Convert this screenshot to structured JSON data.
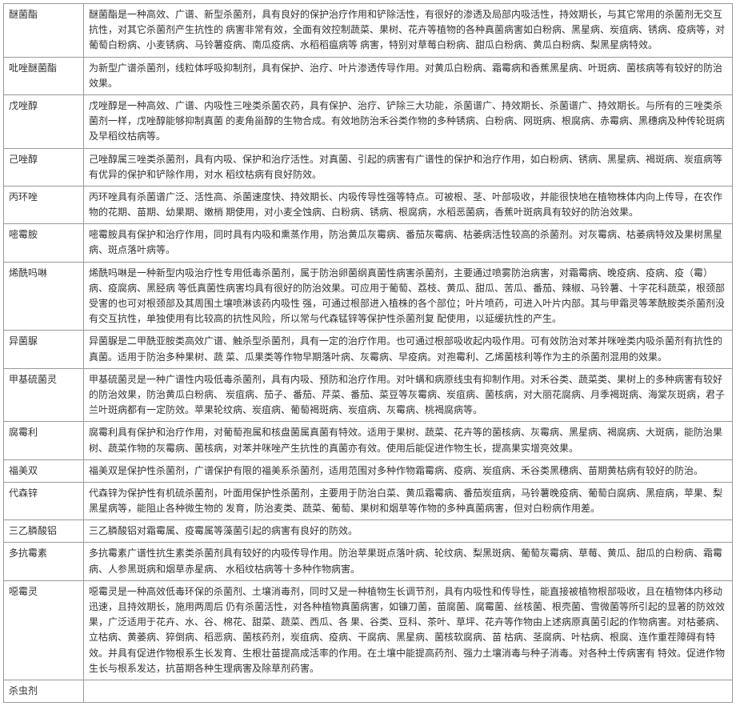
{
  "table": {
    "rows": [
      {
        "name": "醚菌酯",
        "desc": "醚菌酯是一种高效、广谱、新型杀菌剂，具有良好的保护治疗作用和铲除活性，有很好的渗透及局部内吸活性，持效期长，与其它常用的杀菌剂无交互抗性，对其它杀菌剂产生抗性的 病害非常有效，全面有效控制蔬菜、果树、花卉等植物的各种真菌病害如白粉病、黑星病、炭疽病、锈病、疫病等，对葡萄白粉病、小麦锈病、马铃薯疫病、南瓜疫病、水稻稻瘟病等 病害，特别对草莓白粉病、甜瓜白粉病、黄瓜白粉病、梨黑星病特效。"
      },
      {
        "name": "吡唑醚菌酯",
        "desc": "为新型广谱杀菌剂，线粒体呼吸抑制剂，具有保护、治疗、叶片渗透传导作用。对黄瓜白粉病、霜霉病和香蕉黑星病、叶斑病、菌核病等有较好的防治效果。"
      },
      {
        "name": "戊唑醇",
        "desc": "戊唑醇是一种高效、广谱、内吸性三唑类杀菌农药，具有保护、治疗、铲除三大功能，杀菌谱广、持效期长、杀菌谱广、持效期长。与所有的三唑类杀菌剂一样，戊唑醇能够抑制真菌 的麦角甾醇的生物合成。有效地防治禾谷类作物的多种锈病、白粉病、网斑病、根腐病、赤霉病、黑穗病及种传轮斑病及早稻纹枯病等。"
      },
      {
        "name": "己唑醇",
        "desc": "己唑醇属三唑类杀菌剂，具有内吸、保护和治疗活性。对真菌、引起的病害有广谱性的保护和治疗作用，如白粉病、锈病、黑星病、褐斑病、炭疽病等有优异的保护和铲除作用，对水 稻纹枯病有良好防效。"
      },
      {
        "name": "丙环唑",
        "desc": "丙环唑具有杀菌谱广泛、活性高、杀菌速度快、持效期长、内吸传导性强等特点。可被根、茎、叶部吸收，并能很快地在植物株体内向上传导，在农作物的花期、苗期、幼果期、嫩梢 期使用，对小麦全蚀病、白粉病、锈病、根腐病，水稻恶菌病，香蕉叶斑病具有较好的防治效果。"
      },
      {
        "name": "嘧霉胺",
        "desc": "嘧霉胺具有保护和治疗作用，同时具有内吸和熏蒸作用，防治黄瓜灰霉病、番茄灰霉病、枯萎病活性较高的杀菌剂。对灰霉病、枯萎病特效及果树黑星病、斑点落叶病等。"
      },
      {
        "name": "烯酰吗啉",
        "desc": "烯酰吗啉是一种新型内吸治疗性专用低毒杀菌剂，属于防治卵菌纲真菌性病害杀菌剂，主要通过喷雾防治病害，对霜霉病、晚疫病、疫病、疫（霉）病、疫腐病、黑胫病 等低真菌性病害均具有很好的防治效果。可应用于葡萄、荔枝、黄瓜、甜瓜、苦瓜、番茄、辣椒、马铃薯、十字花科蔬菜，根颈部受害的也可对根颈部及其周围土壤喷淋该药内吸性 强，可通过根部进入植株的各个部位；叶片喷药，可进入叶片内部。其与甲霜灵等苯酰胺类杀菌剂没有交互抗性，单独使用有比较高的抗性风险，所以常与代森锰锌等保护性杀菌剂复 配使用，以延缓抗性的产生。"
      },
      {
        "name": "异菌脲",
        "desc": "异菌脲是二甲酰亚胺类高效广谱、触杀型杀菌剂，具有一定的治疗作用。也可通过根部吸收起内吸作用。可有效防治对苯并咪唑类内吸杀菌剂有抗性的真菌。适用于防治多种果树、蔬 菜、瓜果类等作物早期落叶病、灰霉病、早疫病。对孢霉利、乙烯菌核利等作为主的杀菌剂混用的效果。"
      },
      {
        "name": "甲基硫菌灵",
        "desc": "甲基硫菌灵是一种广谱性内吸低毒杀菌剂，具有内吸、预防和治疗作用。对叶螨和病原线虫有抑制作用。对禾谷类、蔬菜类、果树上的多种病害有较好的防治效果，防治黄瓜白粉病、 炭疽病、茄子、番茄、芹菜、番茄、菜豆等灰霉病、炭疽病、菌核病，对大丽花腐病、月季褐斑病、海棠灰斑病，君子兰叶斑病都有一定防效。苹果轮纹病、炭疽病、葡萄褐斑病、炭疽病、灰霉病、桃褐腐病等。"
      },
      {
        "name": "腐霉利",
        "desc": "腐霉利具有保护和治疗作用，对葡萄孢属和核盘菌属真菌有特效。适用于果树、蔬菜、花卉等的菌核病、灰霉病、黑星病、褐腐病、大斑病，能防治果树、蔬菜作物的灰霉病、菌核病，对苯并咪唑产生抗性的真菌亦有效。使用后能促进作物生长，提高果实增亮效果。"
      },
      {
        "name": "福美双",
        "desc": "福美双是保护性杀菌剂，广谱保护有限的福美系杀菌剂，适用范围对多种作物霜霉病、疫病、炭疽病、禾谷类黑穗病、苗期黄枯病有较好的防治。"
      },
      {
        "name": "代森锌",
        "desc": "代森锌为保护性有机硫杀菌剂，叶面用保护性杀菌剂，主要用于防治白菜、黄瓜霜霉病、番茄炭疽病，马铃薯晚疫病、葡萄白腐病、黑痘病，苹果、梨黑星病等，能阻止各种微生物的 发育，防治麦类、蔬菜、葡萄、果树和烟草等作物的多种真菌病害，但对白粉病作用差。"
      },
      {
        "name": "三乙膦酸铝",
        "desc": "三乙膦酸铝对霜霉属、疫霉属等藻菌引起的病害有良好的防效。"
      },
      {
        "name": "多抗霉素",
        "desc": "多抗霉素广谱性抗生素类杀菌剂具有较好的内吸传导作用。防治苹果斑点落叶病、轮纹病、梨黑斑病、葡萄灰霉病、草莓、黄瓜、甜瓜的白粉病、霜霉病、人参黑斑病和烟草赤星病、 水稻纹枯病等十多种作物病害。"
      },
      {
        "name": "噁霉灵",
        "desc": "噁霉灵是一种高效低毒环保的杀菌剂、土壤消毒剂，同时又是一种植物生长调节剂，具有内吸性和传导性，能直接被植物根部吸收，且在植物体内移动迅速，且持效期长，施用两周后 仍有杀菌活性，对各种植物真菌病害，如镰刀菌，苗腐菌、腐霉菌、丝核菌、根壳菌、雪微菌等所引起的显著的防效效果，广泛适用于花卉、水、谷、棉花、甜菜、蔬菜、西瓜、各 果、谷类、豆科、茶叶、草坪、花卉等作物由上述病原真菌引起的作物病害。对枯萎病、立枯病、黄萎病、猝倒病、稻恶病、菌核药剂，炭疽病、疫病、干腐病、黑星病、菌核软腐病、苗 枯病、茎腐病、叶枯病、根腐、连作重茬障碍有特效。并具有促进作物根系生长发育、生根壮苗提高成活率的作用。在土壤中能提高药剂、强力土壤消毒与种子消毒。对各种土传病害有 特效。促进作物生长与根系发达，抗苗期各种生理病害及除草剂药害。"
      },
      {
        "name": "杀虫剂",
        "desc": ""
      }
    ]
  }
}
